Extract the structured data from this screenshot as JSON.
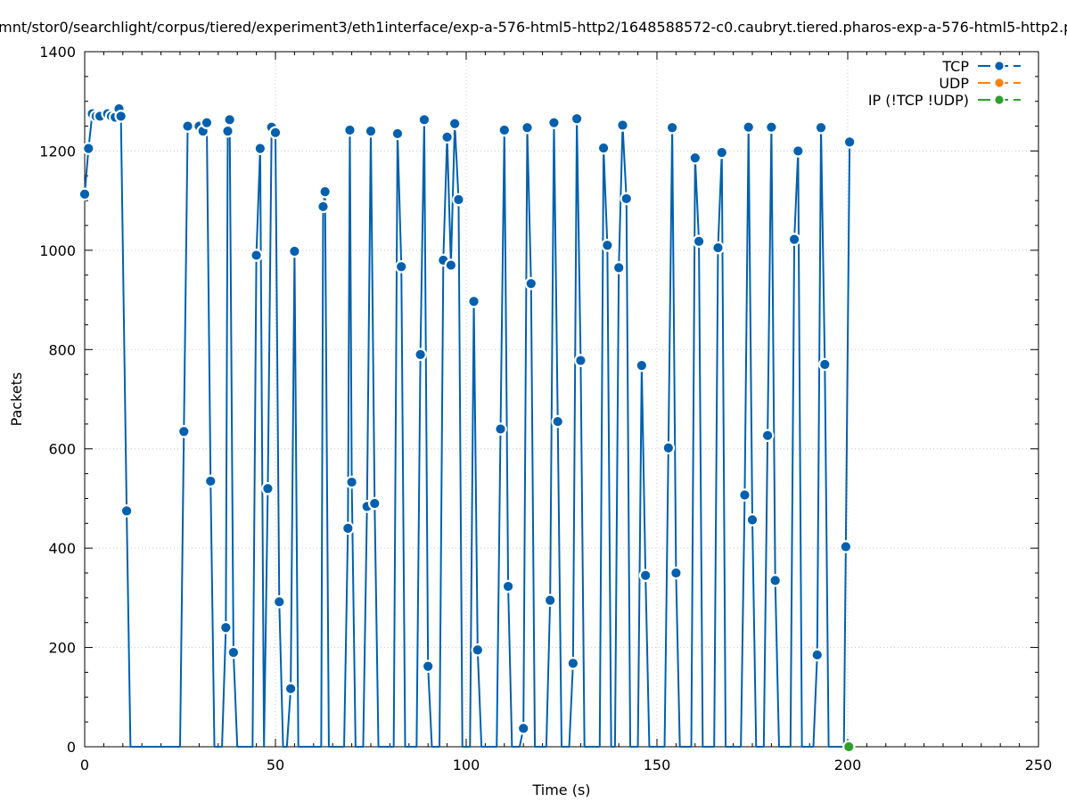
{
  "colors": {
    "tcp": "#0060ad",
    "udp": "#ff7f0e",
    "ip": "#2ca02c",
    "grid": "#c8c8c8",
    "axis": "#000000"
  },
  "chart_data": {
    "type": "line",
    "title": "/mnt/stor0/searchlight/corpus/tiered/experiment3/eth1interface/exp-a-576-html5-http2/1648588572-c0.caubryt.tiered.pharos-exp-a-576-html5-http2.p",
    "xlabel": "Time (s)",
    "ylabel": "Packets",
    "xlim": [
      0,
      250
    ],
    "ylim": [
      0,
      1400
    ],
    "x_ticks": [
      0,
      50,
      100,
      150,
      200,
      250
    ],
    "y_ticks": [
      0,
      200,
      400,
      600,
      800,
      1000,
      1200,
      1400
    ],
    "grid": true,
    "legend_position": "top-right",
    "series": [
      {
        "name": "TCP",
        "color_key": "tcp",
        "points": [
          [
            0,
            1113
          ],
          [
            1,
            1205
          ],
          [
            2,
            1275
          ],
          [
            3,
            1270
          ],
          [
            4,
            1270
          ],
          [
            6,
            1275
          ],
          [
            7,
            1270
          ],
          [
            8,
            1268
          ],
          [
            9,
            1285
          ],
          [
            9.5,
            1270
          ],
          [
            11,
            475
          ],
          [
            12,
            0
          ],
          [
            25,
            0
          ],
          [
            26,
            635
          ],
          [
            27,
            1250
          ],
          [
            30,
            1250
          ],
          [
            31,
            1240
          ],
          [
            32,
            1257
          ],
          [
            33,
            535
          ],
          [
            34,
            0
          ],
          [
            36,
            0
          ],
          [
            37,
            240
          ],
          [
            37.5,
            1240
          ],
          [
            38,
            1263
          ],
          [
            39,
            190
          ],
          [
            40,
            0
          ],
          [
            44,
            0
          ],
          [
            45,
            990
          ],
          [
            46,
            1205
          ],
          [
            47,
            0
          ],
          [
            48,
            520
          ],
          [
            49,
            1248
          ],
          [
            50,
            1237
          ],
          [
            51,
            292
          ],
          [
            52,
            0
          ],
          [
            53,
            0
          ],
          [
            54,
            117
          ],
          [
            55,
            998
          ],
          [
            56,
            0
          ],
          [
            62,
            0
          ],
          [
            62.5,
            1088
          ],
          [
            63,
            1118
          ],
          [
            64,
            0
          ],
          [
            68,
            0
          ],
          [
            69,
            440
          ],
          [
            69.5,
            1242
          ],
          [
            70,
            533
          ],
          [
            71,
            0
          ],
          [
            73,
            0
          ],
          [
            74,
            484
          ],
          [
            75,
            1240
          ],
          [
            76,
            490
          ],
          [
            77,
            0
          ],
          [
            81,
            0
          ],
          [
            82,
            1235
          ],
          [
            83,
            967
          ],
          [
            84,
            0
          ],
          [
            87,
            0
          ],
          [
            88,
            790
          ],
          [
            89,
            1263
          ],
          [
            90,
            162
          ],
          [
            91,
            0
          ],
          [
            93,
            0
          ],
          [
            94,
            980
          ],
          [
            95,
            1228
          ],
          [
            96,
            970
          ],
          [
            97,
            1255
          ],
          [
            98,
            1102
          ],
          [
            99,
            0
          ],
          [
            101,
            0
          ],
          [
            102,
            897
          ],
          [
            103,
            195
          ],
          [
            104,
            0
          ],
          [
            108,
            0
          ],
          [
            109,
            640
          ],
          [
            110,
            1242
          ],
          [
            111,
            323
          ],
          [
            112,
            0
          ],
          [
            114,
            0
          ],
          [
            115,
            37
          ],
          [
            116,
            1247
          ],
          [
            117,
            933
          ],
          [
            118,
            0
          ],
          [
            121,
            0
          ],
          [
            122,
            295
          ],
          [
            123,
            1257
          ],
          [
            124,
            655
          ],
          [
            125,
            0
          ],
          [
            127,
            0
          ],
          [
            128,
            168
          ],
          [
            129,
            1265
          ],
          [
            130,
            778
          ],
          [
            131,
            0
          ],
          [
            135,
            0
          ],
          [
            136,
            1206
          ],
          [
            137,
            1010
          ],
          [
            138,
            0
          ],
          [
            139,
            0
          ],
          [
            140,
            965
          ],
          [
            141,
            1252
          ],
          [
            142,
            1104
          ],
          [
            143,
            0
          ],
          [
            145,
            0
          ],
          [
            146,
            768
          ],
          [
            147,
            345
          ],
          [
            148,
            0
          ],
          [
            152,
            0
          ],
          [
            153,
            602
          ],
          [
            154,
            1247
          ],
          [
            155,
            350
          ],
          [
            156,
            0
          ],
          [
            159,
            0
          ],
          [
            160,
            1186
          ],
          [
            161,
            1018
          ],
          [
            162,
            0
          ],
          [
            165,
            0
          ],
          [
            166,
            1005
          ],
          [
            167,
            1197
          ],
          [
            168,
            0
          ],
          [
            172,
            0
          ],
          [
            173,
            507
          ],
          [
            174,
            1248
          ],
          [
            175,
            457
          ],
          [
            176,
            0
          ],
          [
            178,
            0
          ],
          [
            179,
            627
          ],
          [
            180,
            1248
          ],
          [
            181,
            335
          ],
          [
            182,
            0
          ],
          [
            185,
            0
          ],
          [
            186,
            1022
          ],
          [
            187,
            1200
          ],
          [
            188,
            0
          ],
          [
            191,
            0
          ],
          [
            192,
            185
          ],
          [
            193,
            1247
          ],
          [
            194,
            770
          ],
          [
            195,
            0
          ],
          [
            199,
            0
          ],
          [
            199.5,
            403
          ],
          [
            200.5,
            1218
          ]
        ],
        "marker_points": [
          [
            0,
            1113
          ],
          [
            1,
            1205
          ],
          [
            2,
            1275
          ],
          [
            3,
            1270
          ],
          [
            4,
            1270
          ],
          [
            6,
            1275
          ],
          [
            7,
            1270
          ],
          [
            8,
            1268
          ],
          [
            9,
            1285
          ],
          [
            9.5,
            1270
          ],
          [
            11,
            475
          ],
          [
            26,
            635
          ],
          [
            27,
            1250
          ],
          [
            30,
            1250
          ],
          [
            31,
            1240
          ],
          [
            32,
            1257
          ],
          [
            33,
            535
          ],
          [
            37,
            240
          ],
          [
            37.5,
            1240
          ],
          [
            38,
            1263
          ],
          [
            39,
            190
          ],
          [
            45,
            990
          ],
          [
            46,
            1205
          ],
          [
            48,
            520
          ],
          [
            49,
            1248
          ],
          [
            50,
            1237
          ],
          [
            51,
            292
          ],
          [
            54,
            117
          ],
          [
            55,
            998
          ],
          [
            62.5,
            1088
          ],
          [
            63,
            1118
          ],
          [
            69,
            440
          ],
          [
            69.5,
            1242
          ],
          [
            70,
            533
          ],
          [
            74,
            484
          ],
          [
            75,
            1240
          ],
          [
            76,
            490
          ],
          [
            82,
            1235
          ],
          [
            83,
            967
          ],
          [
            88,
            790
          ],
          [
            89,
            1263
          ],
          [
            90,
            162
          ],
          [
            94,
            980
          ],
          [
            95,
            1228
          ],
          [
            96,
            970
          ],
          [
            97,
            1255
          ],
          [
            98,
            1102
          ],
          [
            102,
            897
          ],
          [
            103,
            195
          ],
          [
            109,
            640
          ],
          [
            110,
            1242
          ],
          [
            111,
            323
          ],
          [
            115,
            37
          ],
          [
            116,
            1247
          ],
          [
            117,
            933
          ],
          [
            122,
            295
          ],
          [
            123,
            1257
          ],
          [
            124,
            655
          ],
          [
            128,
            168
          ],
          [
            129,
            1265
          ],
          [
            130,
            778
          ],
          [
            136,
            1206
          ],
          [
            137,
            1010
          ],
          [
            140,
            965
          ],
          [
            141,
            1252
          ],
          [
            142,
            1104
          ],
          [
            146,
            768
          ],
          [
            147,
            345
          ],
          [
            153,
            602
          ],
          [
            154,
            1247
          ],
          [
            155,
            350
          ],
          [
            160,
            1186
          ],
          [
            161,
            1018
          ],
          [
            166,
            1005
          ],
          [
            167,
            1197
          ],
          [
            173,
            507
          ],
          [
            174,
            1248
          ],
          [
            175,
            457
          ],
          [
            179,
            627
          ],
          [
            180,
            1248
          ],
          [
            181,
            335
          ],
          [
            186,
            1022
          ],
          [
            187,
            1200
          ],
          [
            192,
            185
          ],
          [
            193,
            1247
          ],
          [
            194,
            770
          ],
          [
            199.5,
            403
          ],
          [
            200.5,
            1218
          ]
        ]
      },
      {
        "name": "UDP",
        "color_key": "udp",
        "points": []
      },
      {
        "name": "IP (!TCP  !UDP)",
        "color_key": "ip",
        "points": [
          [
            200.3,
            0
          ]
        ]
      }
    ]
  }
}
